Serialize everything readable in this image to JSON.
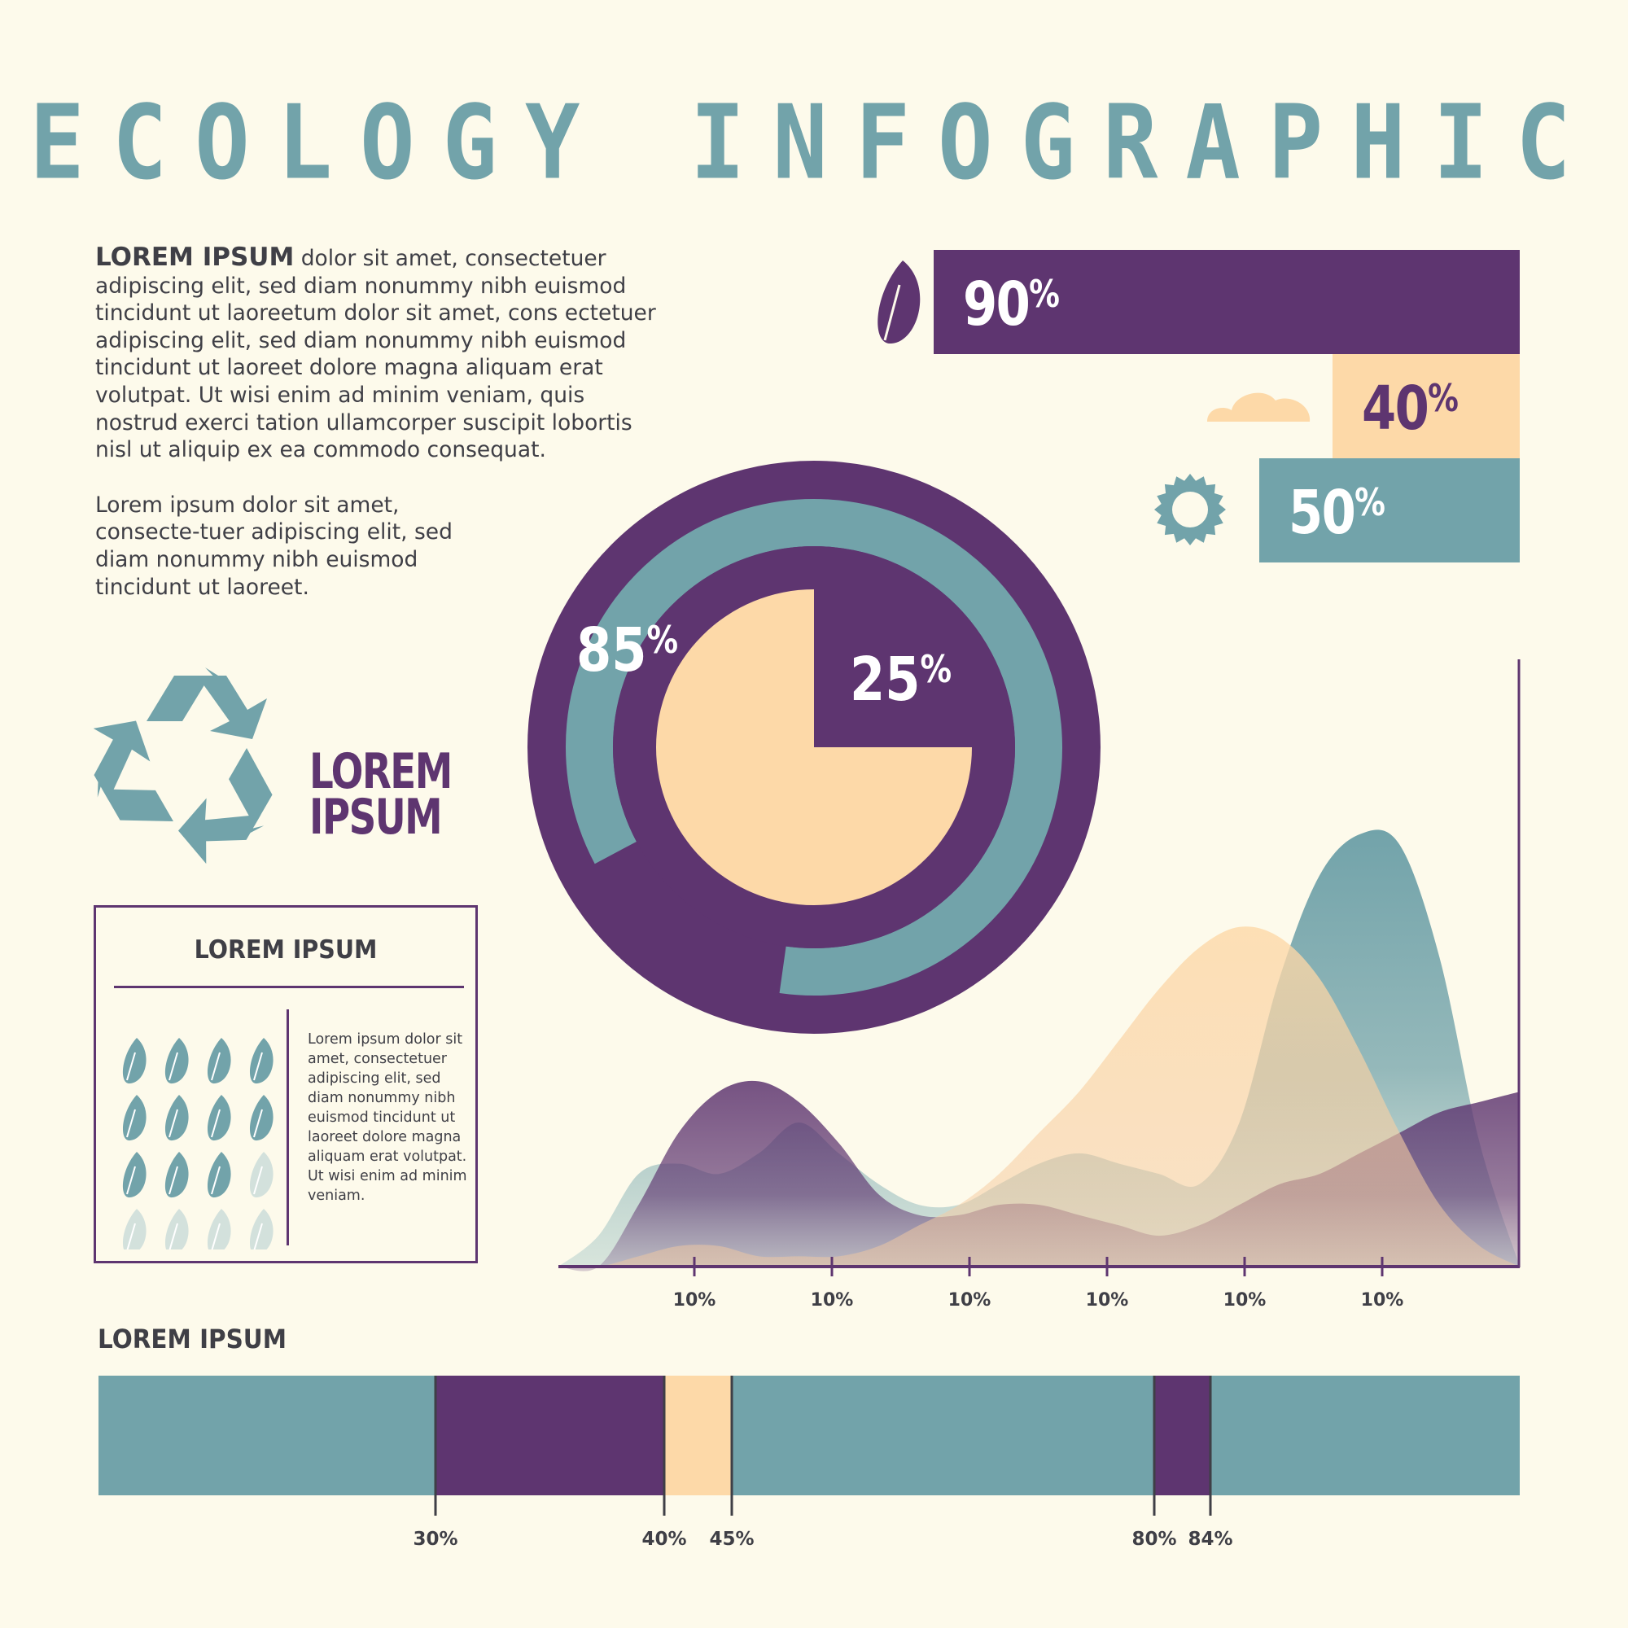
{
  "title": "ECOLOGY INFOGRAPHIC",
  "intro": {
    "lead_bold": "LOREM IPSUM",
    "paragraph1": "dolor sit amet, consectetuer adipiscing elit, sed diam nonummy nibh euismod tincidunt ut laoreetum dolor sit amet, cons ectetuer adipiscing elit, sed diam nonummy nibh euismod tincidunt ut laoreet dolore magna aliquam erat volutpat. Ut wisi enim ad minim veniam, quis nostrud exerci tation ullamcorper suscipit lobortis nisl ut aliquip ex ea commodo consequat.",
    "paragraph2": "Lorem ipsum dolor sit amet, consecte-tuer adipiscing elit, sed diam nonummy nibh euismod tincidunt ut laoreet."
  },
  "recycle": {
    "label_line1": "LOREM",
    "label_line2": "IPSUM"
  },
  "info_box": {
    "title": "LOREM IPSUM",
    "text": "Lorem ipsum dolor sit amet, consectetuer adipiscing elit, sed diam nonummy nibh euismod tincidunt ut laoreet dolore magna aliquam erat volutpat. Ut wisi enim ad minim veniam.",
    "leaves_total": 16,
    "leaves_filled": 11
  },
  "colors": {
    "purple": "#5e3570",
    "teal": "#72a3aa",
    "peach": "#fdd9a8",
    "background": "#fdfaeb",
    "text": "#3f3f46"
  },
  "bottom_title": "LOREM IPSUM",
  "chart_data": [
    {
      "type": "bar",
      "categories": [
        "leaf",
        "cloud",
        "sun"
      ],
      "icons": [
        "leaf-icon",
        "cloud-icon",
        "sun-icon"
      ],
      "values": [
        90,
        40,
        50
      ],
      "labels": [
        "90",
        "40",
        "50"
      ],
      "unit": "%",
      "colors": [
        "#5e3570",
        "#fdd9a8",
        "#72a3aa"
      ]
    },
    {
      "type": "pie",
      "ring_value": 85,
      "ring_label": "85",
      "inner_empty_value": 25,
      "inner_label": "25",
      "unit": "%"
    },
    {
      "type": "area",
      "tick_labels": [
        "10%",
        "10%",
        "10%",
        "10%",
        "10%",
        "10%"
      ],
      "series": [
        {
          "color": "#72a3aa",
          "values": [
            0,
            3,
            9,
            10,
            9,
            11,
            14,
            11,
            8,
            6,
            6,
            8,
            10,
            11,
            10,
            9,
            8,
            14,
            28,
            38,
            42,
            41,
            30,
            12,
            0
          ]
        },
        {
          "color": "#5e3570",
          "values": [
            0,
            0,
            6,
            13,
            17,
            18,
            16,
            12,
            7,
            5,
            5,
            6,
            6,
            5,
            4,
            3,
            4,
            6,
            8,
            9,
            11,
            13,
            15,
            16,
            17
          ]
        },
        {
          "color": "#fdd9a8",
          "values": [
            0,
            0,
            1,
            2,
            2,
            1,
            1,
            1,
            2,
            4,
            6,
            9,
            13,
            17,
            22,
            27,
            31,
            33,
            32,
            28,
            21,
            13,
            6,
            2,
            0
          ]
        }
      ]
    },
    {
      "type": "bar",
      "orientation": "stacked-horizontal",
      "breakpoints": [
        30,
        40,
        45,
        80,
        84
      ],
      "labels": [
        "30%",
        "40%",
        "45%",
        "80%",
        "84%"
      ],
      "segments": [
        {
          "from": 0,
          "to": 30,
          "color": "#72a3aa"
        },
        {
          "from": 30,
          "to": 40,
          "color": "#5e3570"
        },
        {
          "from": 40,
          "to": 45,
          "color": "#fdd9a8"
        },
        {
          "from": 45,
          "to": 80,
          "color": "#72a3aa"
        },
        {
          "from": 80,
          "to": 84,
          "color": "#5e3570"
        },
        {
          "from": 84,
          "to": 100,
          "color": "#72a3aa"
        }
      ]
    }
  ]
}
